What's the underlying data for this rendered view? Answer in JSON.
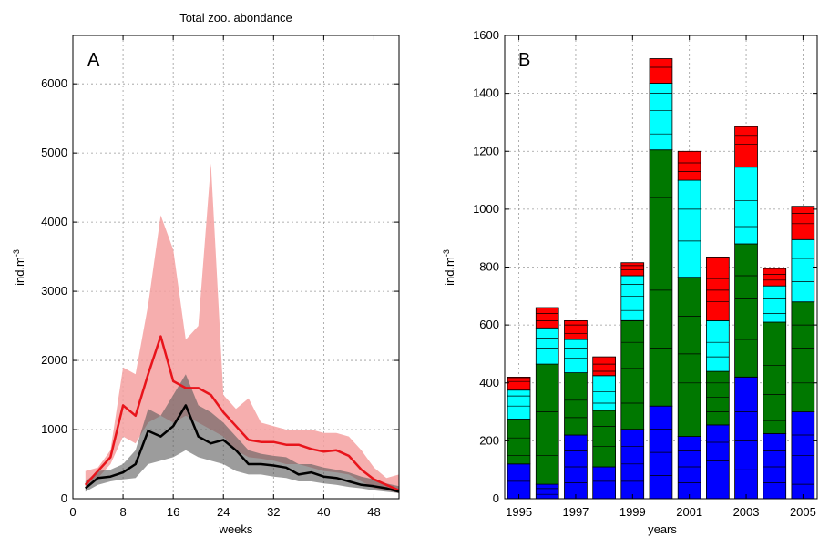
{
  "chart_data": [
    {
      "panel": "A",
      "type": "line",
      "title": "Total zoo. abondance",
      "xlabel": "weeks",
      "ylabel": "ind.m",
      "ylabel_sup": "-3",
      "xlim": [
        0,
        52
      ],
      "ylim": [
        0,
        6700
      ],
      "xticks": [
        0,
        8,
        16,
        24,
        32,
        40,
        48
      ],
      "yticks": [
        0,
        1000,
        2000,
        3000,
        4000,
        5000,
        6000
      ],
      "grid": true,
      "x": [
        2,
        4,
        6,
        8,
        10,
        12,
        14,
        16,
        18,
        20,
        22,
        24,
        26,
        28,
        30,
        32,
        34,
        36,
        38,
        40,
        42,
        44,
        46,
        48,
        50,
        52
      ],
      "series": [
        {
          "color": "#e8141b",
          "band_color": "#f4a0a0",
          "mean": [
            200,
            400,
            600,
            1350,
            1200,
            1800,
            2350,
            1700,
            1600,
            1600,
            1500,
            1250,
            1050,
            850,
            820,
            820,
            780,
            780,
            720,
            680,
            700,
            620,
            420,
            280,
            200,
            120
          ],
          "lower": [
            150,
            300,
            500,
            900,
            800,
            1100,
            1200,
            1100,
            1200,
            1100,
            1000,
            900,
            700,
            600,
            580,
            550,
            500,
            500,
            450,
            400,
            380,
            350,
            250,
            150,
            120,
            80
          ],
          "upper": [
            400,
            450,
            700,
            1900,
            1800,
            2800,
            4100,
            3600,
            2300,
            2500,
            4850,
            1500,
            1300,
            1450,
            1100,
            1050,
            1000,
            1000,
            1000,
            950,
            950,
            900,
            700,
            450,
            300,
            350
          ]
        },
        {
          "color": "#000000",
          "band_color": "#5a5a5a",
          "mean": [
            150,
            300,
            320,
            380,
            500,
            980,
            900,
            1050,
            1350,
            900,
            800,
            850,
            700,
            500,
            500,
            480,
            450,
            350,
            380,
            320,
            300,
            250,
            200,
            180,
            150,
            100
          ],
          "lower": [
            100,
            200,
            250,
            280,
            300,
            500,
            550,
            600,
            700,
            600,
            550,
            500,
            400,
            350,
            350,
            320,
            300,
            250,
            250,
            220,
            200,
            170,
            150,
            120,
            100,
            80
          ],
          "upper": [
            250,
            400,
            420,
            500,
            700,
            1300,
            1200,
            1500,
            1800,
            1350,
            1250,
            1100,
            900,
            700,
            650,
            620,
            600,
            500,
            500,
            450,
            420,
            380,
            320,
            280,
            220,
            180
          ]
        }
      ]
    },
    {
      "panel": "B",
      "type": "bar",
      "stacked": true,
      "xlabel": "years",
      "ylabel": "ind.m",
      "ylabel_sup": "-3",
      "ylim": [
        0,
        1600
      ],
      "yticks": [
        0,
        200,
        400,
        600,
        800,
        1000,
        1200,
        1400,
        1600
      ],
      "grid": true,
      "categories": [
        "1995",
        "1996",
        "1997",
        "1998",
        "1999",
        "2000",
        "2001",
        "2002",
        "2003",
        "2004",
        "2005"
      ],
      "x_tick_labels": [
        "1995",
        "1997",
        "1999",
        "2001",
        "2003",
        "2005"
      ],
      "segment_colors": [
        "#0000ff",
        "#007800",
        "#00ffff",
        "#ff0000"
      ],
      "stacks": [
        [
          120,
          155,
          100,
          45
        ],
        [
          50,
          415,
          125,
          70
        ],
        [
          220,
          215,
          115,
          65
        ],
        [
          110,
          195,
          120,
          65
        ],
        [
          240,
          375,
          155,
          45
        ],
        [
          320,
          885,
          230,
          85
        ],
        [
          215,
          550,
          335,
          100
        ],
        [
          255,
          185,
          175,
          220
        ],
        [
          420,
          460,
          265,
          140
        ],
        [
          225,
          385,
          125,
          60
        ],
        [
          300,
          380,
          215,
          115
        ]
      ],
      "subdivisions": [
        [
          [
            30,
            60
          ],
          [
            150,
            210
          ],
          [
            320,
            355
          ],
          [
            405,
            415
          ]
        ],
        [
          [
            15,
            35
          ],
          [
            150,
            300
          ],
          [
            520,
            555
          ],
          [
            615,
            640
          ]
        ],
        [
          [
            55,
            110,
            165
          ],
          [
            280,
            340
          ],
          [
            485,
            520
          ],
          [
            570,
            600
          ]
        ],
        [
          [
            30,
            60
          ],
          [
            180,
            250
          ],
          [
            330,
            370
          ],
          [
            440,
            465
          ]
        ],
        [
          [
            60,
            120,
            180
          ],
          [
            330,
            450,
            540
          ],
          [
            650,
            700,
            740
          ],
          [
            790,
            805
          ]
        ],
        [
          [
            80,
            160,
            240
          ],
          [
            520,
            720,
            1040
          ],
          [
            1260,
            1340,
            1400
          ],
          [
            1460,
            1490
          ]
        ],
        [
          [
            55,
            110,
            165
          ],
          [
            400,
            500,
            630
          ],
          [
            890,
            1000
          ],
          [
            1130,
            1160
          ]
        ],
        [
          [
            65,
            130,
            195
          ],
          [
            300,
            350,
            400
          ],
          [
            490,
            540
          ],
          [
            680,
            720,
            760
          ]
        ],
        [
          [
            100,
            200,
            300
          ],
          [
            550,
            690,
            770
          ],
          [
            940,
            1030
          ],
          [
            1180,
            1225,
            1255
          ]
        ],
        [
          [
            55,
            110,
            165
          ],
          [
            270,
            360,
            460
          ],
          [
            640,
            690
          ],
          [
            755,
            775
          ]
        ],
        [
          [
            50,
            150,
            220
          ],
          [
            400,
            520,
            600
          ],
          [
            750,
            830
          ],
          [
            950,
            985
          ]
        ]
      ]
    }
  ],
  "panel_a": {
    "letter": "A"
  },
  "panel_b": {
    "letter": "B"
  }
}
